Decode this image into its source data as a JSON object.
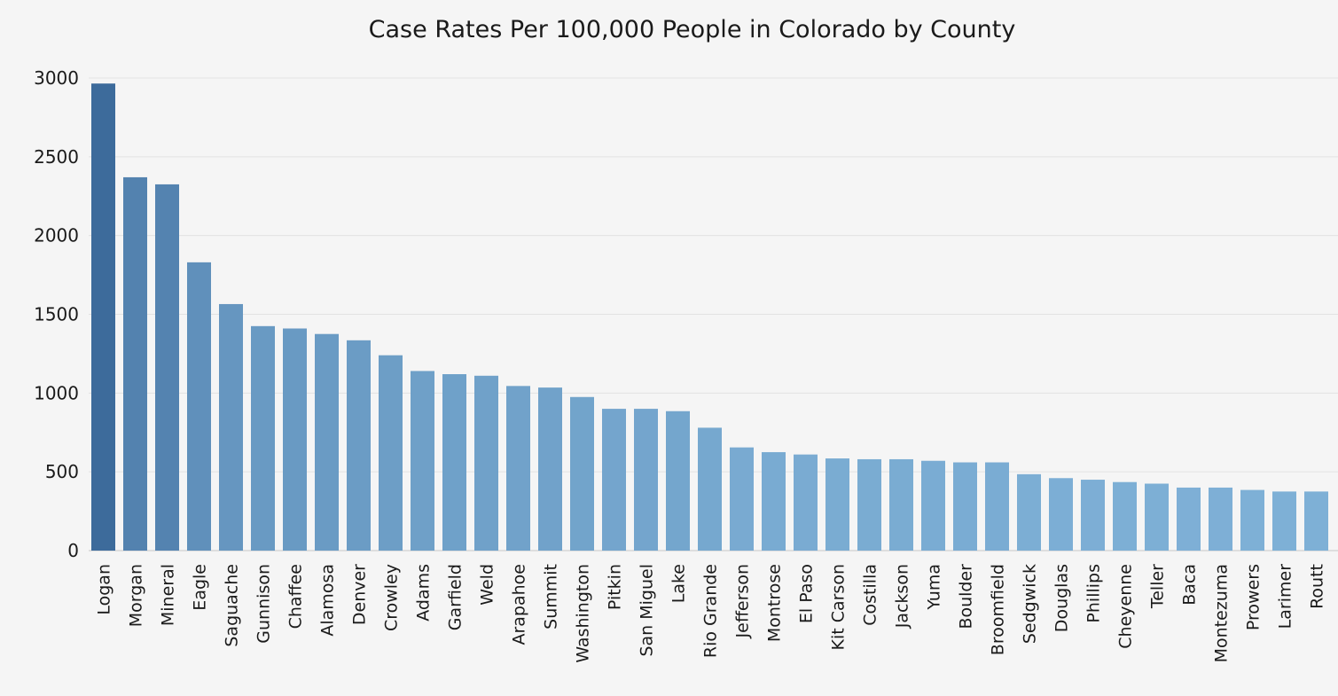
{
  "chart_data": {
    "type": "bar",
    "title": "Case Rates Per 100,000 People in Colorado by County",
    "xlabel": "",
    "ylabel": "",
    "ylim": [
      0,
      3000
    ],
    "yticks": [
      0,
      500,
      1000,
      1500,
      2000,
      2500,
      3000
    ],
    "grid": true,
    "legend": "none",
    "bar_color_dark": "#3d6b9b",
    "bar_color_light": "#7eb0d6",
    "categories": [
      "Logan",
      "Morgan",
      "Mineral",
      "Eagle",
      "Saguache",
      "Gunnison",
      "Chaffee",
      "Alamosa",
      "Denver",
      "Crowley",
      "Adams",
      "Garfield",
      "Weld",
      "Arapahoe",
      "Summit",
      "Washington",
      "Pitkin",
      "San Miguel",
      "Lake",
      "Rio Grande",
      "Jefferson",
      "Montrose",
      "El Paso",
      "Kit Carson",
      "Costilla",
      "Jackson",
      "Yuma",
      "Boulder",
      "Broomfield",
      "Sedgwick",
      "Douglas",
      "Phillips",
      "Cheyenne",
      "Teller",
      "Baca",
      "Montezuma",
      "Prowers",
      "Larimer",
      "Routt"
    ],
    "values": [
      2965,
      2370,
      2325,
      1830,
      1565,
      1425,
      1410,
      1375,
      1335,
      1240,
      1140,
      1120,
      1110,
      1045,
      1035,
      975,
      900,
      900,
      885,
      780,
      655,
      625,
      610,
      585,
      580,
      580,
      570,
      560,
      560,
      485,
      460,
      450,
      435,
      425,
      400,
      400,
      385,
      375,
      375
    ]
  }
}
